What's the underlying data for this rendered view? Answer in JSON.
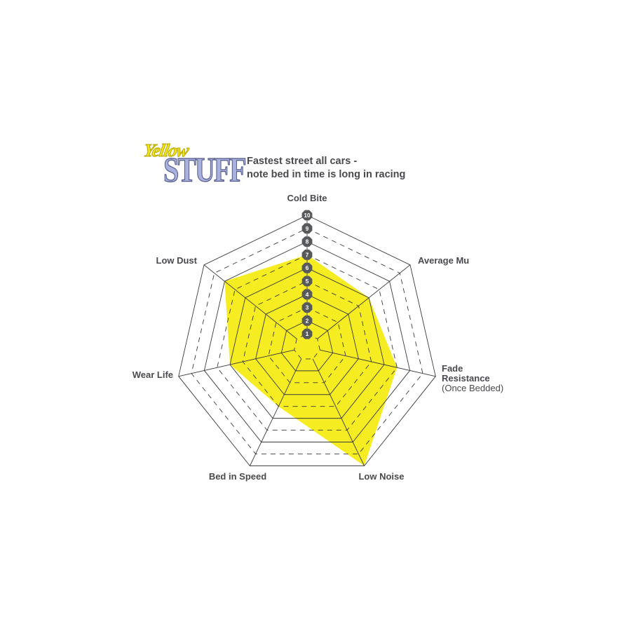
{
  "logo": {
    "line1": "Yellow",
    "line2": "STUFF"
  },
  "title": {
    "line1": "Fastest street all cars -",
    "line2": "note bed in time is long in racing"
  },
  "chart_data": {
    "type": "radar",
    "axes": [
      "Cold Bite",
      "Average Mu",
      "Fade Resistance",
      "Low Noise",
      "Bed in Speed",
      "Wear Life",
      "Low Dust"
    ],
    "axis_sublabels": {
      "Fade Resistance": "(Once Bedded)"
    },
    "values": [
      7,
      6,
      7,
      10,
      5,
      6,
      8
    ],
    "scale": [
      1,
      10
    ],
    "tick_labels": [
      "1",
      "2",
      "3",
      "4",
      "5",
      "6",
      "7",
      "8",
      "9",
      "10"
    ],
    "fill_color": "#f5ec22",
    "grid_color": "#3a3a3a",
    "tick_badge_color": "#58595b"
  }
}
